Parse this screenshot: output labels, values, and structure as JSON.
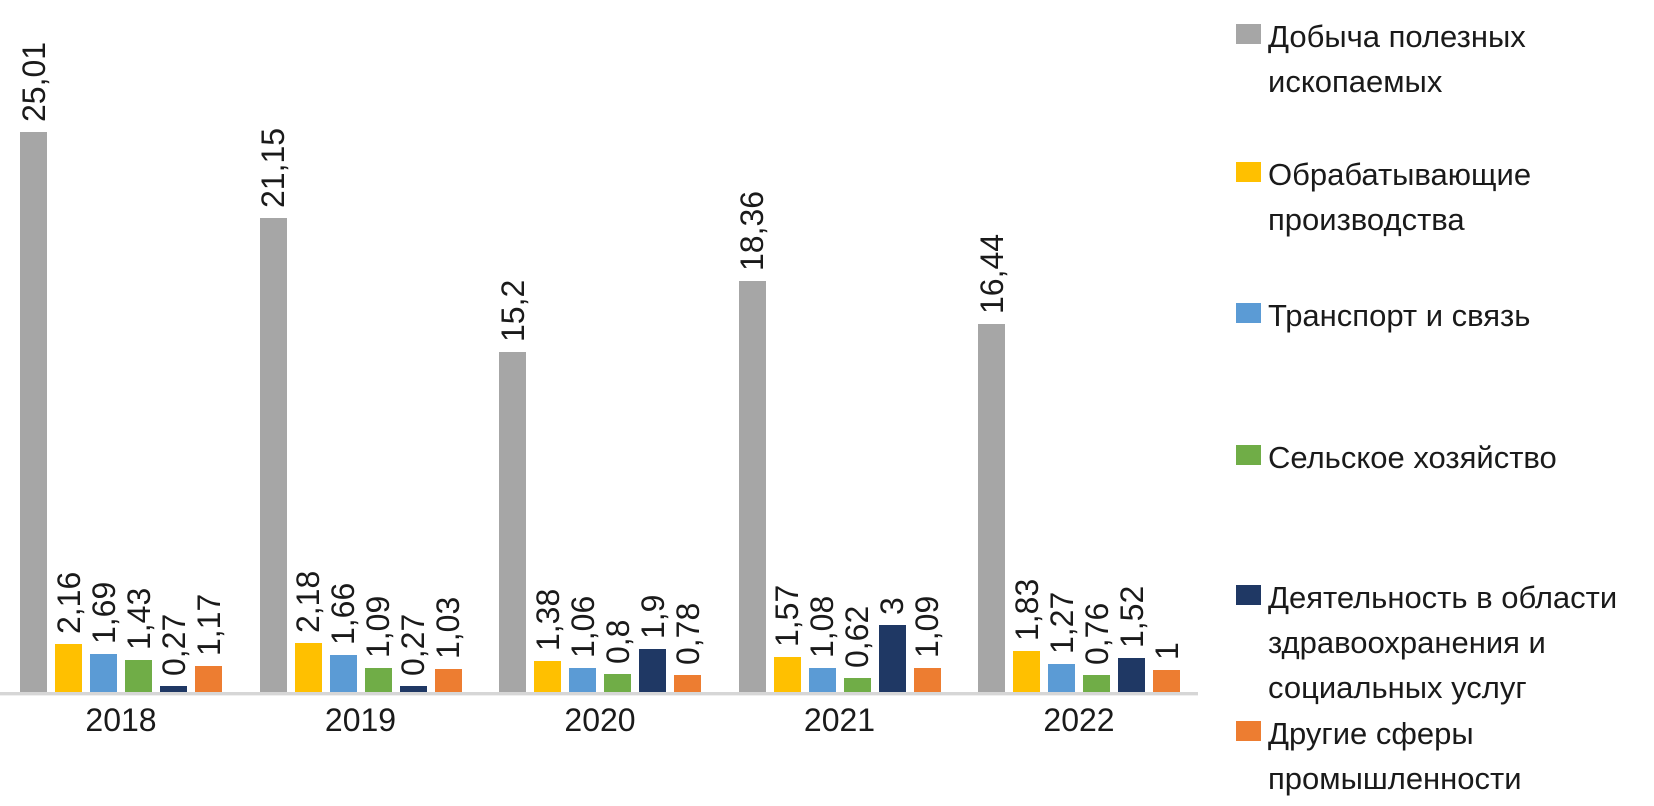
{
  "chart_data": {
    "type": "bar",
    "title": "",
    "xlabel": "",
    "ylabel": "",
    "grid": false,
    "legend_position": "right",
    "ylim": [
      0,
      25.01
    ],
    "value_decimal_separator": ",",
    "categories": [
      "2018",
      "2019",
      "2020",
      "2021",
      "2022"
    ],
    "series": [
      {
        "name": "Добыча полезных ископаемых",
        "color": "#a6a6a6",
        "values": [
          25.01,
          21.15,
          15.2,
          18.36,
          16.44
        ],
        "labels": [
          "25,01",
          "21,15",
          "15,2",
          "18,36",
          "16,44"
        ]
      },
      {
        "name": "Обрабатывающие производства",
        "color": "#ffc000",
        "values": [
          2.16,
          2.18,
          1.38,
          1.57,
          1.83
        ],
        "labels": [
          "2,16",
          "2,18",
          "1,38",
          "1,57",
          "1,83"
        ]
      },
      {
        "name": "Транспорт и связь",
        "color": "#5b9bd5",
        "values": [
          1.69,
          1.66,
          1.06,
          1.08,
          1.27
        ],
        "labels": [
          "1,69",
          "1,66",
          "1,06",
          "1,08",
          "1,27"
        ]
      },
      {
        "name": "Сельское хозяйство",
        "color": "#70ad47",
        "values": [
          1.43,
          1.09,
          0.8,
          0.62,
          0.76
        ],
        "labels": [
          "1,43",
          "1,09",
          "0,8",
          "0,62",
          "0,76"
        ]
      },
      {
        "name": "Деятельность в области здравоохранения и социальных услуг",
        "color": "#1f3864",
        "values": [
          0.27,
          0.27,
          1.9,
          3,
          1.52
        ],
        "labels": [
          "0,27",
          "0,27",
          "1,9",
          "3",
          "1,52"
        ]
      },
      {
        "name": "Другие сферы промышленности",
        "color": "#ed7d31",
        "values": [
          1.17,
          1.03,
          0.78,
          1.09,
          1
        ],
        "labels": [
          "1,17",
          "1,03",
          "0,78",
          "1,09",
          "1"
        ]
      }
    ]
  }
}
